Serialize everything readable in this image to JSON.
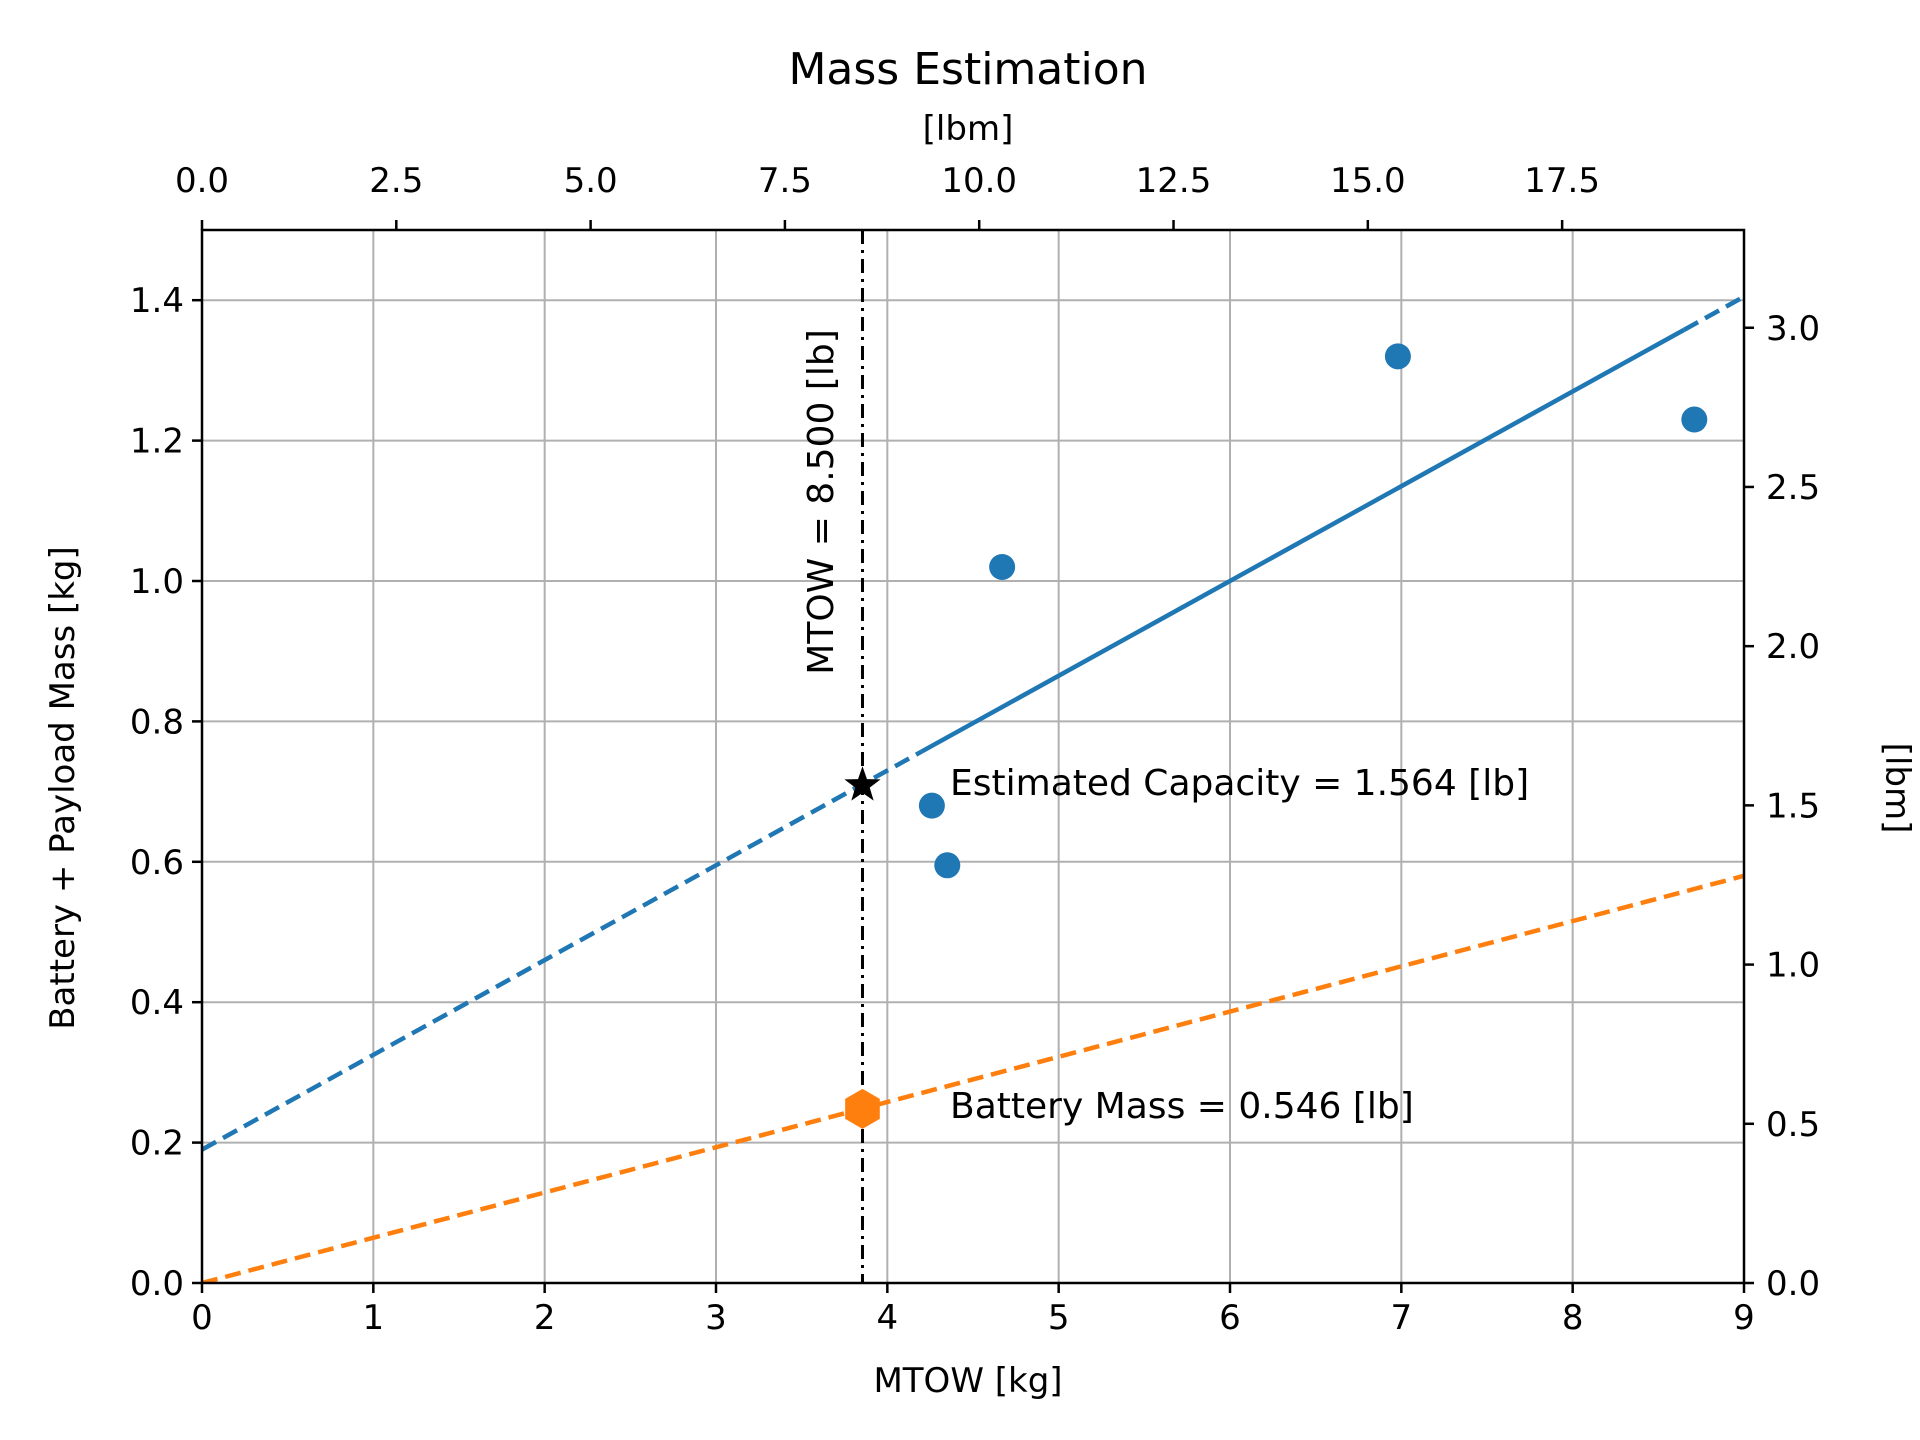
{
  "chart_data": {
    "type": "scatter",
    "title": "Mass Estimation",
    "xlabel": "MTOW [kg]",
    "ylabel": "Battery + Payload Mass [kg]",
    "x2label": "[lbm]",
    "y2label": "[lbm]",
    "xlim": [
      0,
      9
    ],
    "ylim": [
      0,
      1.5
    ],
    "x2lim": [
      0,
      19.84
    ],
    "y2lim": [
      0,
      3.307
    ],
    "grid": true,
    "xticks": [
      "0",
      "1",
      "2",
      "3",
      "4",
      "5",
      "6",
      "7",
      "8",
      "9"
    ],
    "yticks": [
      "0.0",
      "0.2",
      "0.4",
      "0.6",
      "0.8",
      "1.0",
      "1.2",
      "1.4"
    ],
    "x2ticks": [
      "0.0",
      "2.5",
      "5.0",
      "7.5",
      "10.0",
      "12.5",
      "15.0",
      "17.5"
    ],
    "y2ticks": [
      "0.0",
      "0.5",
      "1.0",
      "1.5",
      "2.0",
      "2.5",
      "3.0"
    ],
    "points": {
      "x": [
        4.26,
        4.35,
        4.67,
        6.98,
        8.71
      ],
      "y": [
        0.68,
        0.595,
        1.02,
        1.32,
        1.23
      ]
    },
    "series": [
      {
        "kind": "fit",
        "x": [
          0,
          9
        ],
        "y": [
          0.19,
          1.405
        ],
        "solid_from": 4.2,
        "color": "#1f77b4"
      },
      {
        "kind": "battery",
        "x": [
          0,
          9
        ],
        "y": [
          0.0,
          0.58
        ],
        "color": "#ff7f0e"
      }
    ],
    "mtow_line_x": 3.855,
    "star_point": {
      "x": 3.855,
      "y": 0.709
    },
    "hex_point": {
      "x": 3.855,
      "y": 0.248
    },
    "annotations": {
      "mtow": "MTOW = 8.500 [lb]",
      "capacity": "Estimated Capacity = 1.564 [lb]",
      "battery": "Battery Mass = 0.546 [lb]"
    },
    "colors": {
      "blue": "#1f77b4",
      "orange": "#ff7f0e",
      "grid": "#b0b0b0"
    }
  }
}
